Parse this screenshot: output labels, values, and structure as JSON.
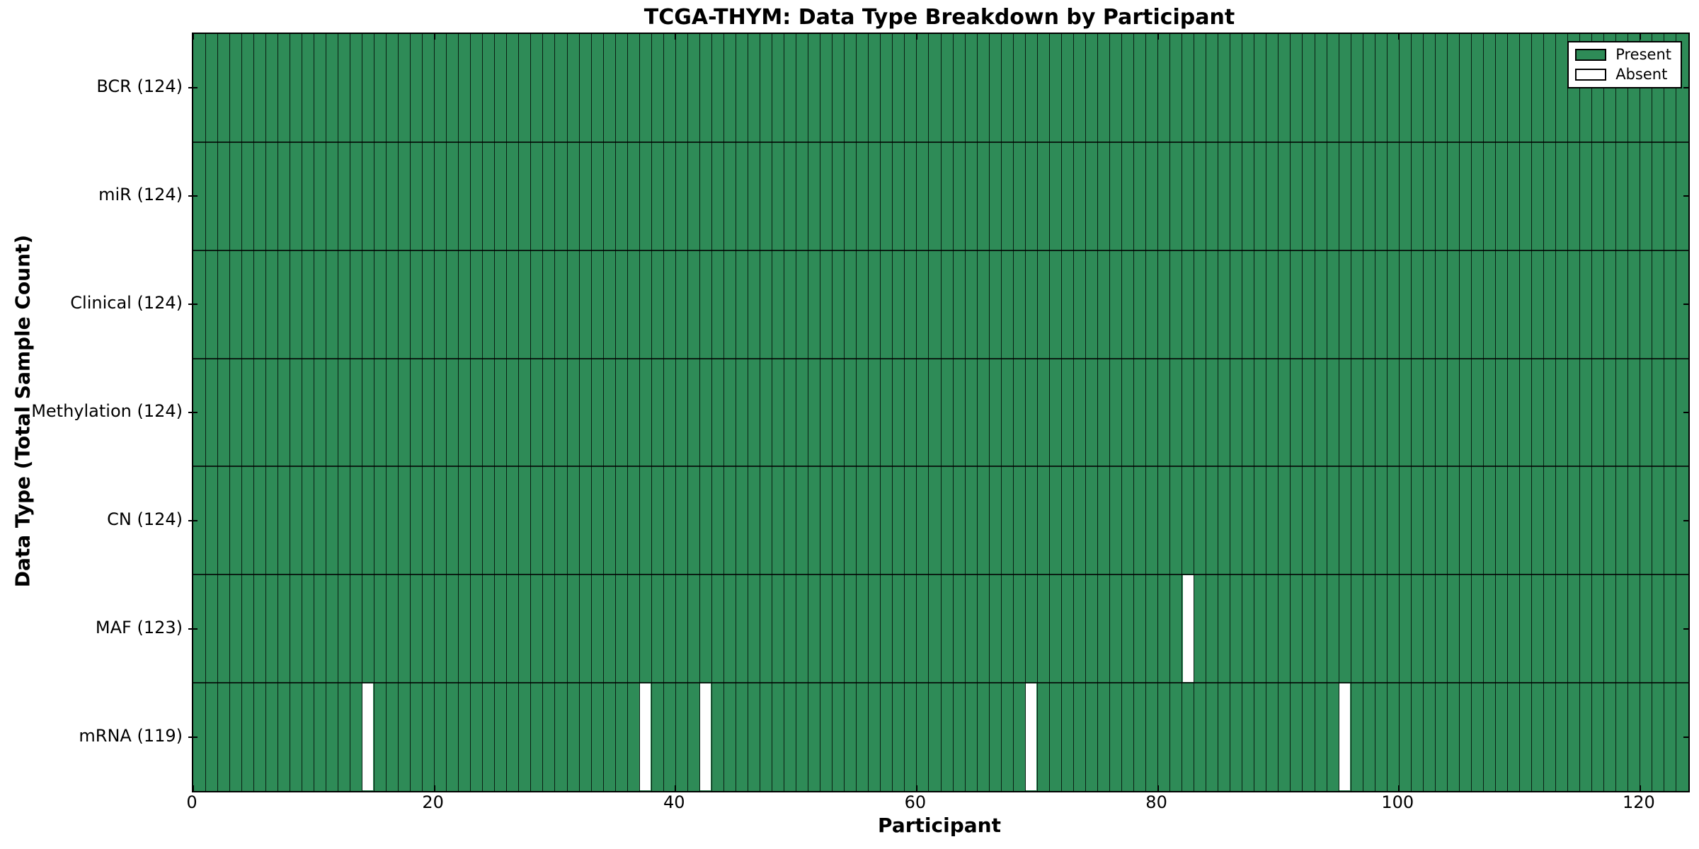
{
  "title": "TCGA-THYM: Data Type Breakdown by Participant",
  "legend": {
    "present_label": "Present",
    "absent_label": "Absent",
    "position": "upper right"
  },
  "colors": {
    "present": "#2e8b57",
    "absent": "#ffffff",
    "cell_edge": "rgba(0,0,0,0.78)",
    "spine": "#000000",
    "background": "#ffffff"
  },
  "chart_data": {
    "type": "heatmap",
    "title": "TCGA-THYM: Data Type Breakdown by Participant",
    "xlabel": "Participant",
    "ylabel": "Data Type (Total Sample Count)",
    "xlim": [
      0,
      124
    ],
    "n_participants": 124,
    "x_ticks": [
      0,
      20,
      40,
      60,
      80,
      100,
      120
    ],
    "grid": "cell-borders",
    "legend_entries": [
      "Present",
      "Absent"
    ],
    "legend_position": "upper right",
    "rows": [
      {
        "label": "BCR (124)",
        "data_type": "BCR",
        "present_count": 124,
        "absent_participants": []
      },
      {
        "label": "miR (124)",
        "data_type": "miR",
        "present_count": 124,
        "absent_participants": []
      },
      {
        "label": "Clinical (124)",
        "data_type": "Clinical",
        "present_count": 124,
        "absent_participants": []
      },
      {
        "label": "Methylation (124)",
        "data_type": "Methylation",
        "present_count": 124,
        "absent_participants": []
      },
      {
        "label": "CN (124)",
        "data_type": "CN",
        "present_count": 124,
        "absent_participants": []
      },
      {
        "label": "MAF (123)",
        "data_type": "MAF",
        "present_count": 123,
        "absent_participants": [
          82
        ]
      },
      {
        "label": "mRNA (119)",
        "data_type": "mRNA",
        "present_count": 119,
        "absent_participants": [
          14,
          37,
          42,
          69,
          95
        ]
      }
    ]
  }
}
